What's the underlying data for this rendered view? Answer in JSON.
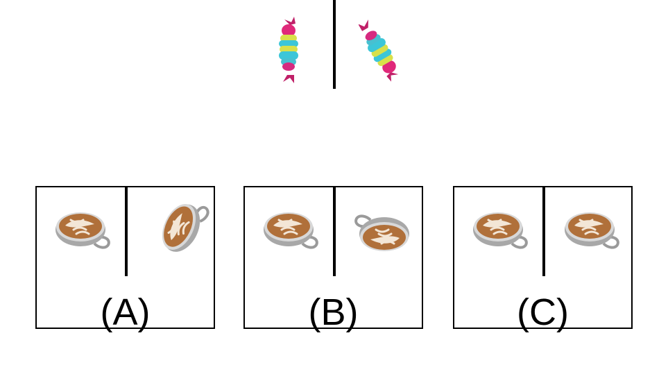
{
  "question": {
    "object_icon": "candy-icon",
    "original": {
      "icon": "candy-icon",
      "rotation_deg": 0
    },
    "reflection": {
      "icon": "candy-icon",
      "rotation_deg": 150
    }
  },
  "options": [
    {
      "label": "(A)",
      "left_icon": "latte-cup-icon",
      "right_icon": "latte-cup-icon",
      "right_rotation_deg": -65
    },
    {
      "label": "(B)",
      "left_icon": "latte-cup-icon",
      "right_icon": "latte-cup-icon",
      "right_rotation_deg": 180
    },
    {
      "label": "(C)",
      "left_icon": "latte-cup-icon",
      "right_icon": "latte-cup-icon",
      "right_rotation_deg": 0
    }
  ],
  "colors": {
    "candy_pink": "#e0287a",
    "candy_cyan": "#3cc6d8",
    "candy_yellow": "#d8e04a",
    "coffee_foam": "#b0703a",
    "cup_gray": "#9a9a9a"
  }
}
